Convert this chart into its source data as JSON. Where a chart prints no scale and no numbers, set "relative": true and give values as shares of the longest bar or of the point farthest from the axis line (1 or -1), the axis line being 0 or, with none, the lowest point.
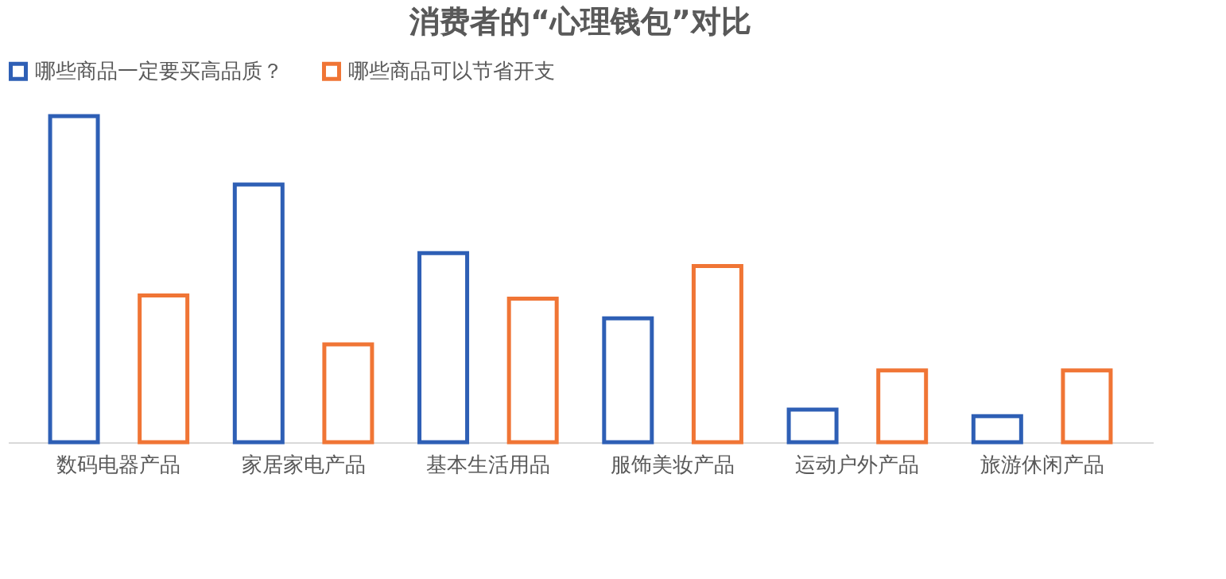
{
  "chart_data": {
    "type": "bar",
    "title": "消费者的“心理钱包”对比",
    "categories": [
      "数码电器产品",
      "家居家电产品",
      "基本生活用品",
      "服饰美妆产品",
      "运动户外产品",
      "旅游休闲产品"
    ],
    "series": [
      {
        "name": "哪些商品一定要买高品质？",
        "color": "#2e5fb5",
        "values": [
          1,
          0.79,
          0.58,
          0.38,
          0.1,
          0.08
        ]
      },
      {
        "name": "哪些商品可以节省开支",
        "color": "#f07535",
        "values": [
          0.45,
          0.3,
          0.44,
          0.54,
          0.22,
          0.22
        ]
      }
    ],
    "relative": true,
    "legend": "top",
    "grid": false
  }
}
